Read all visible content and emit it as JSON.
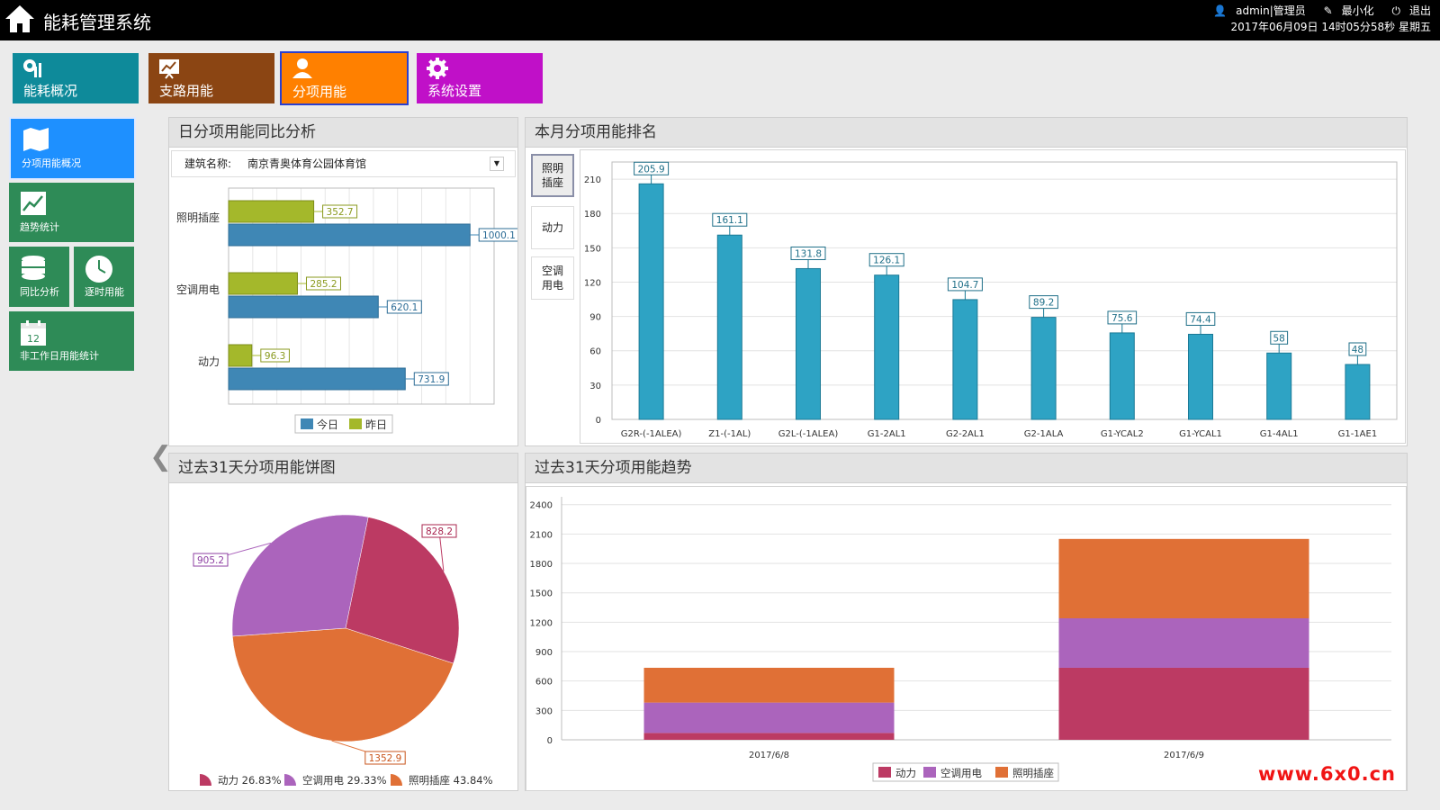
{
  "app": {
    "title": "能耗管理系统"
  },
  "header": {
    "user": "admin|管理员",
    "minimize": "最小化",
    "logout": "退出",
    "datetime": "2017年06月09日 14时05分58秒 星期五"
  },
  "modules": [
    {
      "label": "能耗概况",
      "icon": "energy-overview-icon",
      "color": "#0e8a9a"
    },
    {
      "label": "支路用能",
      "icon": "branch-chart-icon",
      "color": "#8b4513"
    },
    {
      "label": "分项用能",
      "icon": "person-icon",
      "color": "#ff8000"
    },
    {
      "label": "系统设置",
      "icon": "gear-icon",
      "color": "#c010c8"
    }
  ],
  "sidenav": [
    {
      "label": "分项用能概况",
      "icon": "map-icon"
    },
    {
      "label": "趋势统计",
      "icon": "trend-icon"
    },
    {
      "label": "同比分析",
      "icon": "database-icon"
    },
    {
      "label": "逐时用能",
      "icon": "clock-icon"
    },
    {
      "label": "非工作日用能统计",
      "icon": "calendar-icon",
      "badge": "12"
    }
  ],
  "panels": {
    "daily": {
      "title": "日分项用能同比分析",
      "building_label": "建筑名称:",
      "building_value": "南京青奥体育公园体育馆",
      "dropdown_icon": "triangle-down-icon"
    },
    "ranking": {
      "title": "本月分项用能排名",
      "categories": [
        "照明插座",
        "动力",
        "空调用电"
      ],
      "active": 0
    },
    "pie": {
      "title": "过去31天分项用能饼图"
    },
    "trend": {
      "title": "过去31天分项用能趋势"
    }
  },
  "colors": {
    "today": "#3f87b5",
    "yesterday": "#a4b82b",
    "rank_bar": "#2ea3c4",
    "power": "#bc3a63",
    "ac": "#ab64bc",
    "lighting": "#e07036"
  },
  "chart_data": [
    {
      "type": "bar",
      "orientation": "horizontal",
      "categories": [
        "照明插座",
        "空调用电",
        "动力"
      ],
      "series": [
        {
          "name": "今日",
          "values": [
            1000.1,
            620.1,
            731.9
          ]
        },
        {
          "name": "昨日",
          "values": [
            352.7,
            285.2,
            96.3
          ]
        }
      ],
      "xlim": [
        0,
        1100
      ]
    },
    {
      "type": "bar",
      "categories": [
        "G2R-(-1ALEA)",
        "Z1-(-1AL)",
        "G2L-(-1ALEA)",
        "G1-2AL1",
        "G2-2AL1",
        "G2-1ALA",
        "G1-YCAL2",
        "G1-YCAL1",
        "G1-4AL1",
        "G1-1AE1"
      ],
      "values": [
        205.9,
        161.1,
        131.8,
        126.1,
        104.7,
        89.2,
        75.6,
        74.4,
        58,
        48
      ],
      "yticks": [
        0,
        30,
        60,
        90,
        120,
        150,
        180,
        210
      ],
      "ylim": [
        0,
        225
      ]
    },
    {
      "type": "pie",
      "labels": [
        "动力",
        "空调用电",
        "照明插座"
      ],
      "values": [
        828.2,
        905.2,
        1352.9
      ],
      "percents": [
        "26.83%",
        "29.33%",
        "43.84%"
      ]
    },
    {
      "type": "bar",
      "stacked": true,
      "categories": [
        "2017/6/8",
        "2017/6/9"
      ],
      "series": [
        {
          "name": "动力",
          "values": [
            70,
            735
          ]
        },
        {
          "name": "空调用电",
          "values": [
            310,
            505
          ]
        },
        {
          "name": "照明插座",
          "values": [
            355,
            810
          ]
        }
      ],
      "yticks": [
        0,
        300,
        600,
        900,
        1200,
        1500,
        1800,
        2100,
        2400
      ],
      "ylim": [
        0,
        2480
      ]
    }
  ],
  "watermark": "www.6x0.cn"
}
